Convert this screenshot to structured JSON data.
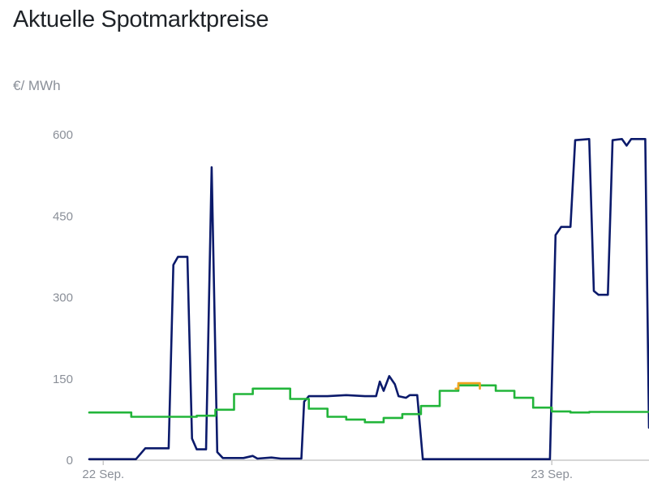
{
  "title": "Aktuelle Spotmarktpreise",
  "unit_label": "€/ MWh",
  "colors": {
    "spot": "#0b1a6b",
    "green": "#22b53a",
    "orange": "#f0a21e",
    "axis": "#c8c8c8",
    "tick_text": "#8a8f98"
  },
  "chart_data": {
    "type": "line",
    "ylabel": "€/ MWh",
    "ylim": [
      0,
      600
    ],
    "yticks": [
      "600",
      "450",
      "300",
      "150",
      "0"
    ],
    "ytick_values": [
      600,
      450,
      300,
      150,
      0
    ],
    "xlim_hours": [
      -0.75,
      29.2
    ],
    "xticks": [
      {
        "label": "22 Sep.",
        "hour": 0
      },
      {
        "label": "23 Sep.",
        "hour": 24
      }
    ],
    "series": [
      {
        "name": "",
        "color": "#0b1a6b",
        "points": [
          [
            -0.75,
            2
          ],
          [
            1.75,
            2
          ],
          [
            2.25,
            22
          ],
          [
            3.5,
            22
          ],
          [
            3.75,
            360
          ],
          [
            4.0,
            375
          ],
          [
            4.5,
            375
          ],
          [
            4.75,
            40
          ],
          [
            5.0,
            20
          ],
          [
            5.5,
            20
          ],
          [
            5.8,
            540
          ],
          [
            6.1,
            15
          ],
          [
            6.4,
            4
          ],
          [
            7.5,
            4
          ],
          [
            8.0,
            8
          ],
          [
            8.25,
            3
          ],
          [
            9.0,
            5
          ],
          [
            9.5,
            3
          ],
          [
            10.6,
            3
          ],
          [
            10.75,
            108
          ],
          [
            11.0,
            118
          ],
          [
            12.0,
            118
          ],
          [
            13.0,
            120
          ],
          [
            14.0,
            118
          ],
          [
            14.6,
            118
          ],
          [
            14.8,
            145
          ],
          [
            15.0,
            128
          ],
          [
            15.3,
            155
          ],
          [
            15.6,
            140
          ],
          [
            15.8,
            118
          ],
          [
            16.2,
            115
          ],
          [
            16.4,
            120
          ],
          [
            16.8,
            120
          ],
          [
            17.1,
            2
          ],
          [
            23.9,
            2
          ],
          [
            24.2,
            415
          ],
          [
            24.5,
            430
          ],
          [
            25.0,
            430
          ],
          [
            25.25,
            590
          ],
          [
            26.0,
            592
          ],
          [
            26.25,
            312
          ],
          [
            26.5,
            305
          ],
          [
            27.0,
            305
          ],
          [
            27.25,
            590
          ],
          [
            27.75,
            592
          ],
          [
            28.0,
            580
          ],
          [
            28.25,
            592
          ],
          [
            29.0,
            592
          ],
          [
            29.2,
            60
          ]
        ]
      },
      {
        "name": "",
        "color": "#22b53a",
        "step_points": [
          [
            -0.75,
            88
          ],
          [
            0.5,
            88
          ],
          [
            1.5,
            80
          ],
          [
            5.0,
            82
          ],
          [
            6.0,
            93
          ],
          [
            7.0,
            122
          ],
          [
            8.0,
            132
          ],
          [
            10.0,
            113
          ],
          [
            11.0,
            95
          ],
          [
            12.0,
            80
          ],
          [
            13.0,
            75
          ],
          [
            14.0,
            70
          ],
          [
            15.0,
            78
          ],
          [
            16.0,
            85
          ],
          [
            17.0,
            100
          ],
          [
            18.0,
            128
          ],
          [
            19.0,
            138
          ],
          [
            21.0,
            128
          ],
          [
            22.0,
            115
          ],
          [
            23.0,
            97
          ],
          [
            24.0,
            90
          ],
          [
            25.0,
            88
          ],
          [
            26.0,
            89
          ],
          [
            29.2,
            89
          ]
        ]
      },
      {
        "name": "",
        "color": "#f0a21e",
        "step_points": [
          [
            18.85,
            132
          ],
          [
            19.0,
            142
          ],
          [
            20.0,
            142
          ],
          [
            20.15,
            132
          ]
        ]
      }
    ]
  }
}
